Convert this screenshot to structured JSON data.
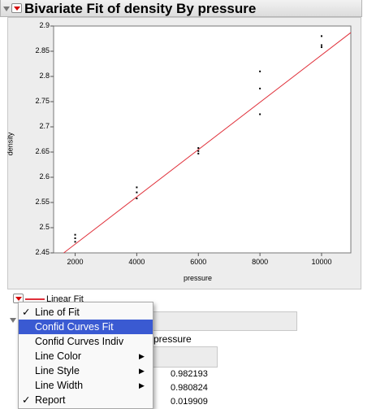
{
  "report": {
    "title": "Bivariate Fit of density By pressure"
  },
  "chart_data": {
    "type": "scatter",
    "title": "",
    "xlabel": "pressure",
    "ylabel": "density",
    "xlim": [
      1300,
      10950
    ],
    "ylim": [
      2.45,
      2.9
    ],
    "x_ticks": [
      2000,
      4000,
      6000,
      8000,
      10000
    ],
    "y_ticks": [
      2.45,
      2.5,
      2.55,
      2.6,
      2.65,
      2.7,
      2.75,
      2.8,
      2.85,
      2.9
    ],
    "x_tick_labels": [
      "2000",
      "4000",
      "6000",
      "8000",
      "10000"
    ],
    "y_tick_labels": [
      "2.45",
      "2.5",
      "2.55",
      "2.6",
      "2.65",
      "2.7",
      "2.75",
      "2.8",
      "2.85",
      "2.9"
    ],
    "grid": false,
    "points": {
      "x": [
        2000,
        2000,
        2000,
        4000,
        4000,
        4000,
        6000,
        6000,
        6000,
        8000,
        8000,
        8000,
        10000,
        10000,
        10000
      ],
      "y": [
        2.486,
        2.479,
        2.472,
        2.58,
        2.57,
        2.558,
        2.658,
        2.652,
        2.647,
        2.81,
        2.776,
        2.725,
        2.88,
        2.862,
        2.858
      ]
    },
    "fit_line": {
      "x": [
        1630,
        10950
      ],
      "y": [
        2.45,
        2.887
      ],
      "color": "#e0303a"
    },
    "point_color": "#000000"
  },
  "fit_legend": {
    "label": "Linear Fit",
    "line_color": "#e0303a"
  },
  "popup_menu": {
    "items": [
      {
        "label": "Line of Fit",
        "checked": true,
        "check_mark": "✓",
        "submenu": false,
        "active": false
      },
      {
        "label": "Confid Curves Fit",
        "checked": false,
        "check_mark": "",
        "submenu": false,
        "active": true
      },
      {
        "label": "Confid Curves Indiv",
        "checked": false,
        "check_mark": "",
        "submenu": false,
        "active": false
      },
      {
        "label": "Line Color",
        "checked": false,
        "check_mark": "",
        "submenu": true,
        "active": false
      },
      {
        "label": "Line Style",
        "checked": false,
        "check_mark": "",
        "submenu": true,
        "active": false
      },
      {
        "label": "Line Width",
        "checked": false,
        "check_mark": "",
        "submenu": true,
        "active": false
      },
      {
        "label": "Report",
        "checked": true,
        "check_mark": "✓",
        "submenu": false,
        "active": false
      }
    ],
    "submenu_arrow": "▶"
  },
  "background_report": {
    "equation_fragment": "pressure",
    "values": [
      "0.982193",
      "0.980824",
      "0.019909"
    ]
  }
}
